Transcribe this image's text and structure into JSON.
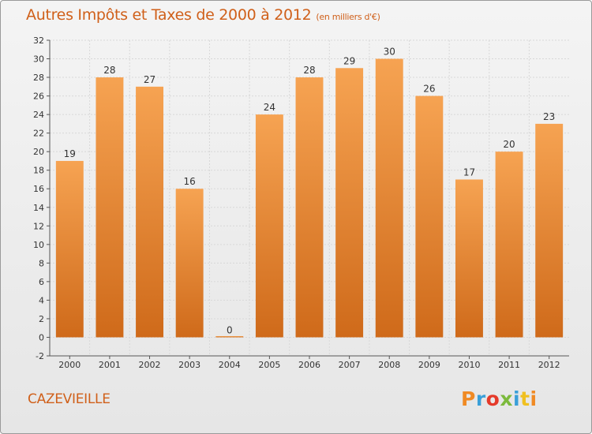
{
  "colors": {
    "accent": "#d0601a",
    "bar_top": "#f6a352",
    "bar_bottom": "#cf6a1a",
    "grid": "#d8d8d8",
    "logo_letters": [
      "#f08a24",
      "#3a9fd8",
      "#e53a2a",
      "#7cba3c",
      "#3a9fd8",
      "#f0c020"
    ]
  },
  "header": {
    "title": "Autres Impôts et Taxes de 2000 à 2012",
    "subtitle": "(en milliers d'€)"
  },
  "footer": {
    "commune": "CAZEVIEILLE",
    "logo_letters": [
      "P",
      "r",
      "o",
      "x",
      "i",
      "t",
      "i"
    ]
  },
  "chart_data": {
    "type": "bar",
    "title": "Autres Impôts et Taxes de 2000 à 2012",
    "subtitle": "(en milliers d'€)",
    "xlabel": "",
    "ylabel": "",
    "categories": [
      "2000",
      "2001",
      "2002",
      "2003",
      "2004",
      "2005",
      "2006",
      "2007",
      "2008",
      "2009",
      "2010",
      "2011",
      "2012"
    ],
    "values": [
      19,
      28,
      27,
      16,
      0,
      24,
      28,
      29,
      30,
      26,
      17,
      20,
      23
    ],
    "data_labels": [
      "19",
      "28",
      "27",
      "16",
      "0",
      "24",
      "28",
      "29",
      "30",
      "26",
      "17",
      "20",
      "23"
    ],
    "ylim": [
      -2,
      32
    ],
    "yticks": [
      -2,
      0,
      2,
      4,
      6,
      8,
      10,
      12,
      14,
      16,
      18,
      20,
      22,
      24,
      26,
      28,
      30,
      32
    ],
    "ytick_labels": [
      "-2",
      "0",
      "2",
      "4",
      "6",
      "8",
      "10",
      "12",
      "14",
      "16",
      "18",
      "20",
      "22",
      "24",
      "26",
      "28",
      "30",
      "32"
    ],
    "grid": true,
    "legend": "none"
  }
}
